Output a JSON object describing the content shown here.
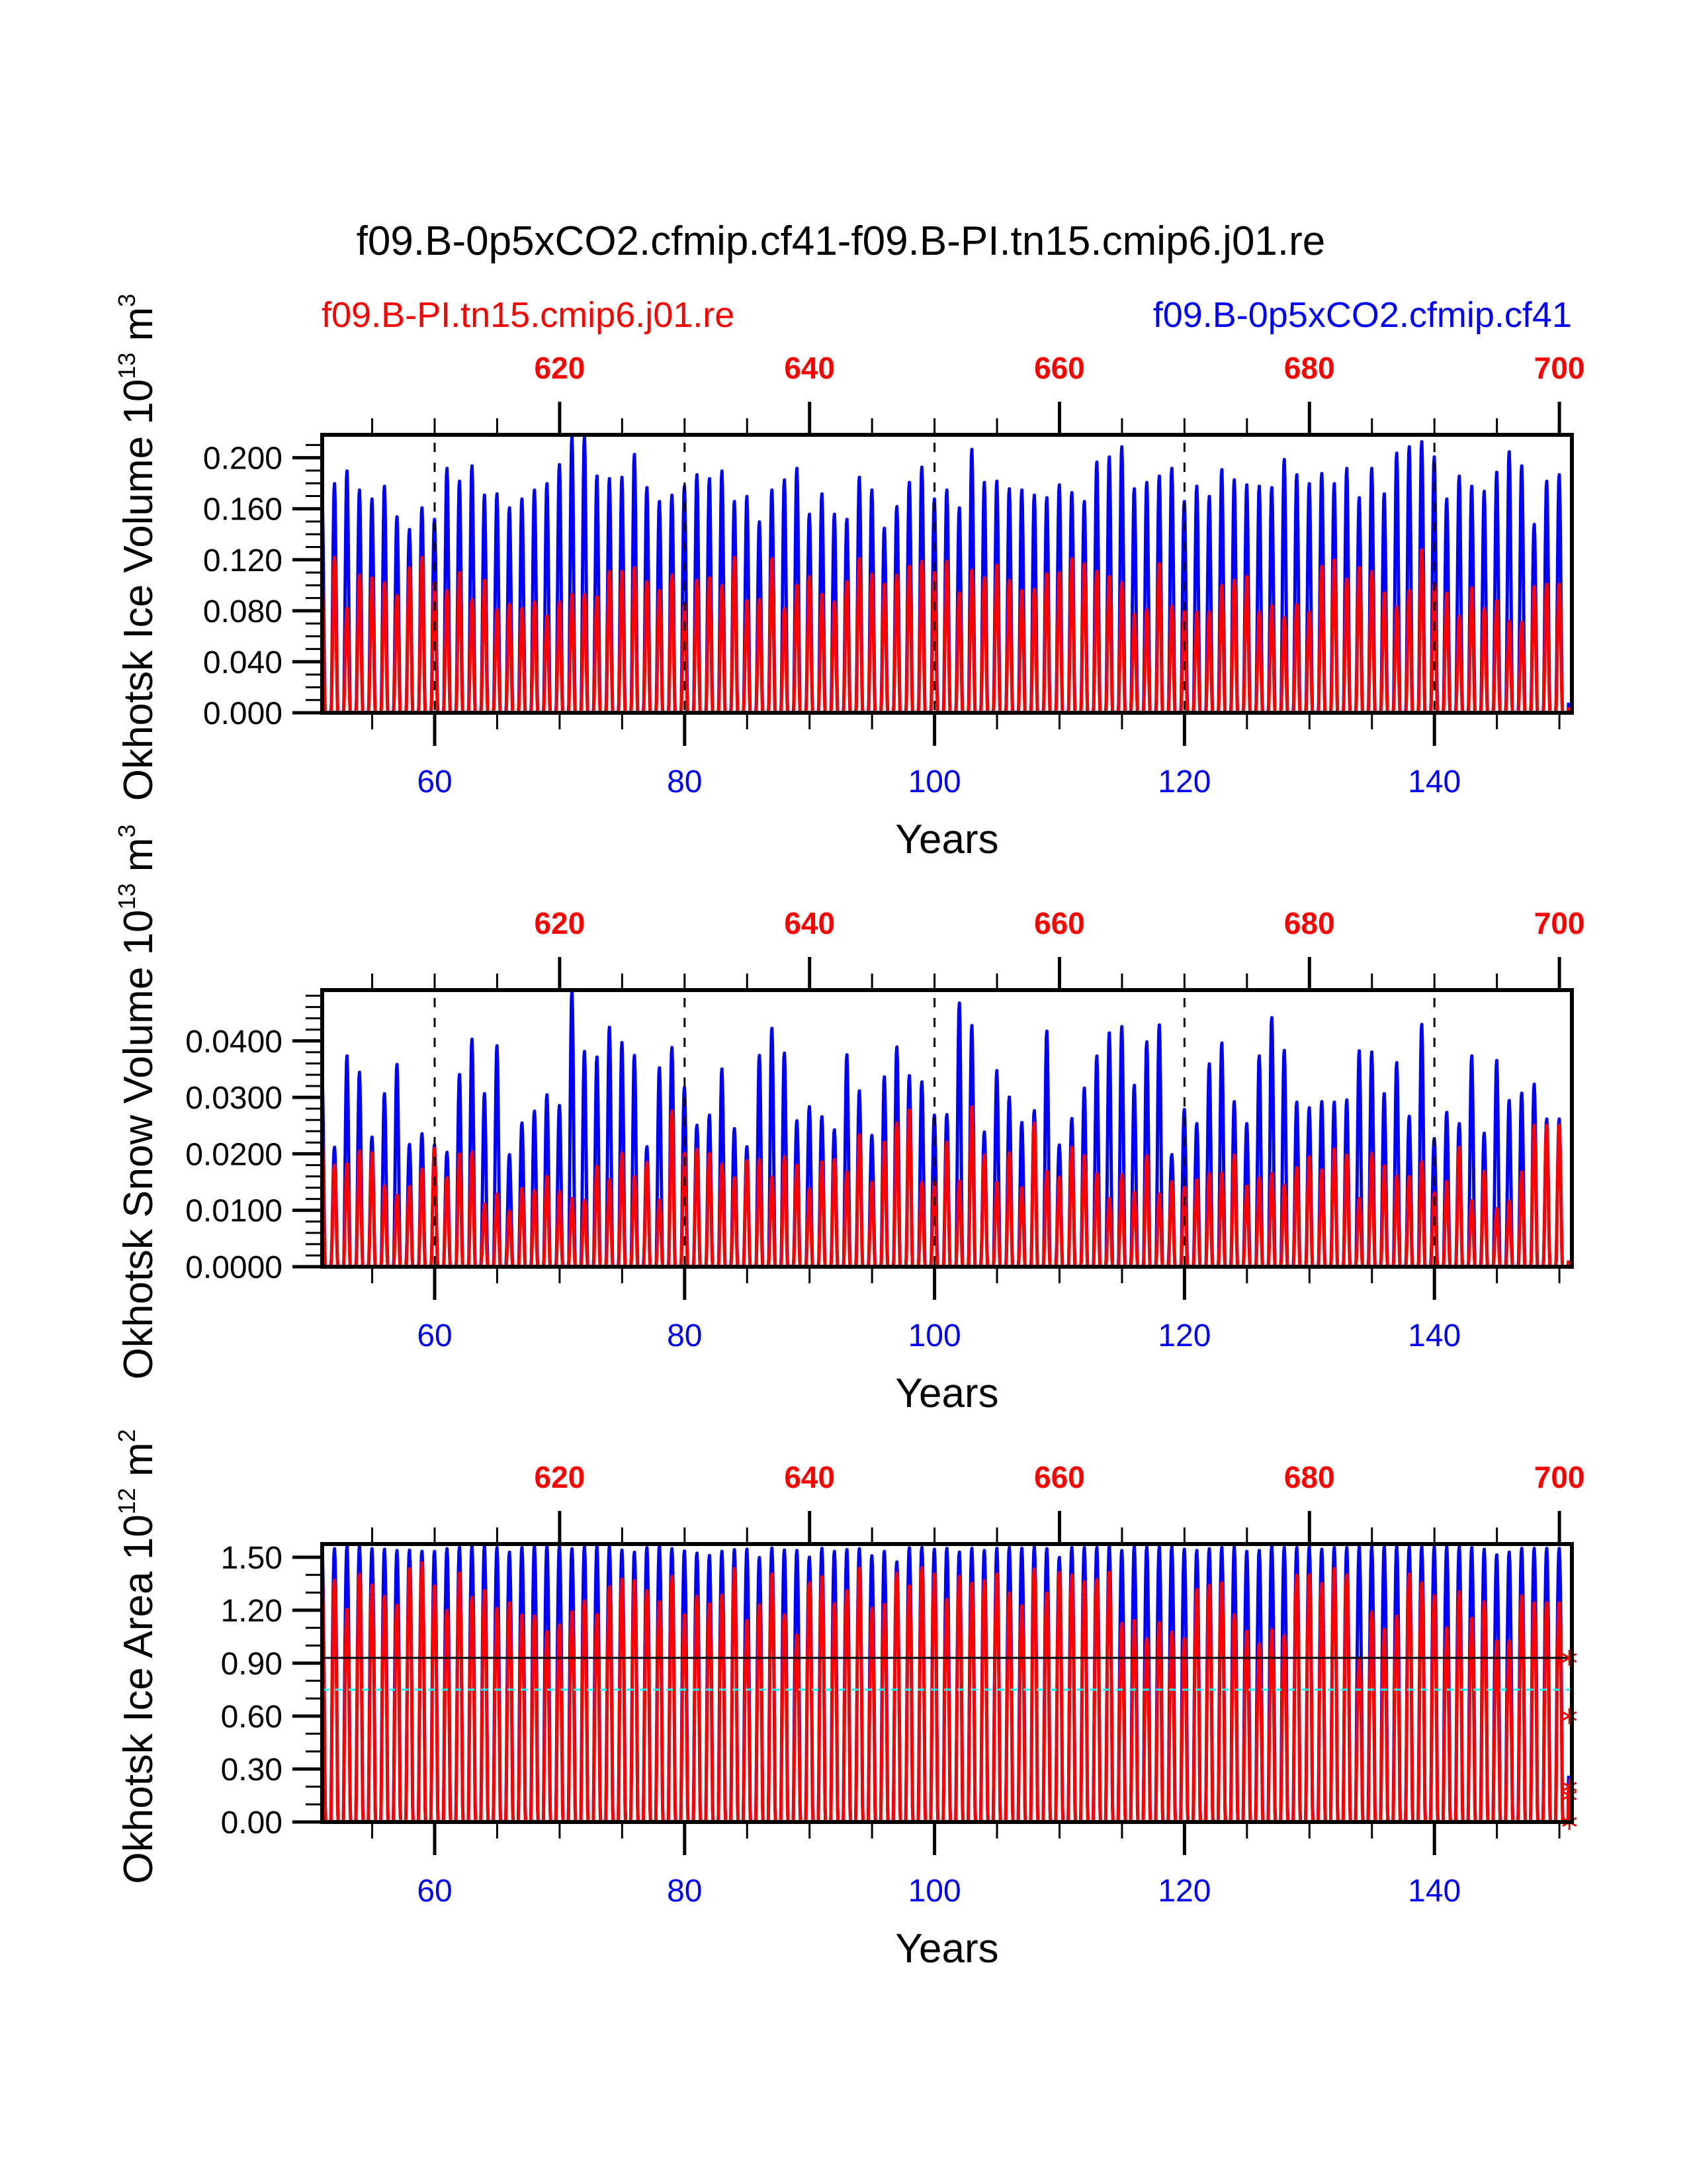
{
  "chart_data": {
    "type": "line",
    "title": "f09.B-0p5xCO2.cfmip.cf41-f09.B-PI.tn15.cmip6.j01.re",
    "legend": {
      "left": {
        "label": "f09.B-PI.tn15.cmip6.j01.re",
        "color": "#ff0000"
      },
      "right": {
        "label": "f09.B-0p5xCO2.cfmip.cf41",
        "color": "#0000ff"
      }
    },
    "x_bottom": {
      "label": "Years",
      "range": [
        51,
        151
      ],
      "ticks": [
        60,
        80,
        100,
        120,
        140
      ],
      "tick_labels": [
        "60",
        "80",
        "100",
        "120",
        "140"
      ],
      "minor_step": 5,
      "color": "#0000ff"
    },
    "x_top": {
      "range": [
        601,
        701
      ],
      "ticks": [
        620,
        640,
        660,
        680,
        700
      ],
      "tick_labels": [
        "620",
        "640",
        "660",
        "680",
        "700"
      ],
      "minor_step": 5,
      "color": "#ff0000"
    },
    "first_year": 51,
    "panels": [
      {
        "id": "ice-volume",
        "ylabel": "Okhotsk Ice Volume 10",
        "ylabel_exp": "13",
        "ylabel_unit": " m",
        "ylabel_unit_exp": "3",
        "ylim": [
          0,
          0.218
        ],
        "yticks": [
          0.0,
          0.04,
          0.08,
          0.12,
          0.16,
          0.2
        ],
        "ytick_labels": [
          "0.000",
          "0.040",
          "0.080",
          "0.120",
          "0.160",
          "0.200"
        ],
        "yminor_step": 0.01,
        "vlines_dashed_years": [
          60,
          80,
          100,
          120,
          140
        ],
        "hlines": [],
        "series": [
          {
            "name": "f09.B-0p5xCO2.cfmip.cf41",
            "color": "#0000ff",
            "annual_max": [
              0.17,
              0.18,
              0.19,
              0.175,
              0.168,
              0.178,
              0.154,
              0.144,
              0.161,
              0.152,
              0.192,
              0.182,
              0.194,
              0.171,
              0.172,
              0.161,
              0.168,
              0.175,
              0.18,
              0.195,
              0.217,
              0.217,
              0.186,
              0.184,
              0.185,
              0.203,
              0.177,
              0.166,
              0.171,
              0.178,
              0.187,
              0.184,
              0.19,
              0.166,
              0.17,
              0.15,
              0.175,
              0.183,
              0.192,
              0.156,
              0.172,
              0.156,
              0.152,
              0.185,
              0.175,
              0.145,
              0.162,
              0.181,
              0.193,
              0.168,
              0.175,
              0.161,
              0.207,
              0.181,
              0.182,
              0.176,
              0.175,
              0.171,
              0.169,
              0.179,
              0.173,
              0.166,
              0.197,
              0.201,
              0.209,
              0.176,
              0.181,
              0.186,
              0.192,
              0.166,
              0.178,
              0.17,
              0.191,
              0.183,
              0.179,
              0.178,
              0.177,
              0.199,
              0.187,
              0.18,
              0.188,
              0.18,
              0.192,
              0.169,
              0.192,
              0.172,
              0.204,
              0.209,
              0.213,
              0.201,
              0.168,
              0.186,
              0.178,
              0.174,
              0.189,
              0.205,
              0.194,
              0.148,
              0.182,
              0.187
            ]
          },
          {
            "name": "f09.B-PI.tn15.cmip6.j01.re",
            "color": "#ff0000",
            "annual_max": [
              0.105,
              0.122,
              0.082,
              0.108,
              0.106,
              0.102,
              0.092,
              0.114,
              0.122,
              0.102,
              0.096,
              0.11,
              0.089,
              0.104,
              0.081,
              0.085,
              0.082,
              0.087,
              0.076,
              0.087,
              0.093,
              0.093,
              0.091,
              0.111,
              0.111,
              0.114,
              0.103,
              0.096,
              0.108,
              0.085,
              0.104,
              0.106,
              0.1,
              0.122,
              0.088,
              0.089,
              0.121,
              0.082,
              0.1,
              0.107,
              0.093,
              0.087,
              0.103,
              0.121,
              0.109,
              0.101,
              0.108,
              0.115,
              0.119,
              0.11,
              0.119,
              0.094,
              0.112,
              0.106,
              0.116,
              0.104,
              0.096,
              0.097,
              0.109,
              0.11,
              0.121,
              0.117,
              0.111,
              0.107,
              0.102,
              0.077,
              0.081,
              0.117,
              0.084,
              0.08,
              0.079,
              0.079,
              0.1,
              0.104,
              0.107,
              0.079,
              0.084,
              0.075,
              0.085,
              0.079,
              0.115,
              0.12,
              0.105,
              0.114,
              0.111,
              0.094,
              0.083,
              0.096,
              0.128,
              0.101,
              0.094,
              0.076,
              0.098,
              0.082,
              0.088,
              0.072,
              0.071,
              0.099,
              0.101,
              0.101
            ]
          }
        ]
      },
      {
        "id": "snow-volume",
        "ylabel": "Okhotsk Snow Volume 10",
        "ylabel_exp": "13",
        "ylabel_unit": " m",
        "ylabel_unit_exp": "3",
        "ylim": [
          0,
          0.049
        ],
        "yticks": [
          0.0,
          0.01,
          0.02,
          0.03,
          0.04
        ],
        "ytick_labels": [
          "0.0000",
          "0.0100",
          "0.0200",
          "0.0300",
          "0.0400"
        ],
        "yminor_step": 0.002,
        "vlines_dashed_years": [
          60,
          80,
          100,
          120,
          140
        ],
        "hlines": [],
        "series": [
          {
            "name": "f09.B-0p5xCO2.cfmip.cf41",
            "color": "#0000ff",
            "annual_max": [
              0.0339,
              0.0212,
              0.0374,
              0.0345,
              0.023,
              0.0307,
              0.0359,
              0.0217,
              0.0236,
              0.0216,
              0.0203,
              0.0341,
              0.0404,
              0.0307,
              0.0392,
              0.0199,
              0.0255,
              0.0276,
              0.0305,
              0.0286,
              0.049,
              0.0382,
              0.0372,
              0.0425,
              0.0398,
              0.0375,
              0.0213,
              0.0353,
              0.0389,
              0.0318,
              0.0251,
              0.0269,
              0.0351,
              0.0245,
              0.0213,
              0.0375,
              0.0423,
              0.0379,
              0.0259,
              0.0284,
              0.0266,
              0.0243,
              0.0376,
              0.0312,
              0.0233,
              0.0337,
              0.039,
              0.0339,
              0.0328,
              0.0269,
              0.027,
              0.0468,
              0.0428,
              0.0239,
              0.0348,
              0.0301,
              0.0256,
              0.0277,
              0.0418,
              0.0216,
              0.0263,
              0.0317,
              0.0374,
              0.0415,
              0.0426,
              0.0322,
              0.0399,
              0.0429,
              0.0199,
              0.0279,
              0.0254,
              0.036,
              0.0397,
              0.0293,
              0.0254,
              0.0374,
              0.0442,
              0.0384,
              0.0292,
              0.0282,
              0.0293,
              0.0292,
              0.0296,
              0.0383,
              0.0381,
              0.0307,
              0.0362,
              0.0267,
              0.043,
              0.0227,
              0.0274,
              0.0254,
              0.0374,
              0.0237,
              0.0366,
              0.0295,
              0.0308,
              0.0324,
              0.0262,
              0.0262
            ]
          },
          {
            "name": "f09.B-PI.tn15.cmip6.j01.re",
            "color": "#ff0000",
            "annual_max": [
              0.0241,
              0.018,
              0.0182,
              0.0205,
              0.0202,
              0.0143,
              0.0127,
              0.0142,
              0.0173,
              0.021,
              0.0158,
              0.02,
              0.0203,
              0.0111,
              0.0129,
              0.0098,
              0.0139,
              0.0135,
              0.016,
              0.0133,
              0.0121,
              0.0118,
              0.0178,
              0.0155,
              0.0201,
              0.016,
              0.0185,
              0.0118,
              0.0276,
              0.0201,
              0.0208,
              0.0201,
              0.0182,
              0.0158,
              0.0188,
              0.019,
              0.0159,
              0.0195,
              0.018,
              0.0138,
              0.0186,
              0.019,
              0.0168,
              0.0234,
              0.015,
              0.0221,
              0.0255,
              0.0278,
              0.015,
              0.015,
              0.0221,
              0.0152,
              0.0284,
              0.0198,
              0.0149,
              0.0202,
              0.014,
              0.0255,
              0.0169,
              0.0159,
              0.0212,
              0.0197,
              0.0165,
              0.0121,
              0.0163,
              0.0132,
              0.0197,
              0.0129,
              0.0151,
              0.0141,
              0.0154,
              0.0165,
              0.0166,
              0.0198,
              0.0143,
              0.0158,
              0.0165,
              0.0145,
              0.0176,
              0.0195,
              0.0172,
              0.0209,
              0.0198,
              0.0121,
              0.0201,
              0.0179,
              0.0161,
              0.016,
              0.0186,
              0.0131,
              0.0151,
              0.0212,
              0.0117,
              0.0169,
              0.0103,
              0.0117,
              0.0168,
              0.0251,
              0.0251,
              0.0251
            ]
          }
        ]
      },
      {
        "id": "ice-area",
        "ylabel": "Okhotsk Ice Area 10",
        "ylabel_exp": "12",
        "ylabel_unit": " m",
        "ylabel_unit_exp": "2",
        "ylim": [
          0,
          1.575
        ],
        "yticks": [
          0.0,
          0.3,
          0.6,
          0.9,
          1.2,
          1.5
        ],
        "ytick_labels": [
          "0.00",
          "0.30",
          "0.60",
          "0.90",
          "1.20",
          "1.50"
        ],
        "yminor_step": 0.1,
        "vlines_dashed_years": [],
        "hlines": [
          {
            "value": 0.93,
            "color": "#000000",
            "style": "solid"
          },
          {
            "value": 0.75,
            "color": "#00ffff",
            "style": "dashed"
          }
        ],
        "markers": {
          "symbol": "asterisk",
          "color": "#ff0000",
          "x": 150.8,
          "values": [
            0.93,
            0.6,
            0.2,
            0.15,
            0.0
          ]
        },
        "series": [
          {
            "name": "f09.B-0p5xCO2.cfmip.cf41",
            "color": "#0000ff",
            "annual_max": [
              1.537,
              1.55,
              1.565,
              1.565,
              1.55,
              1.547,
              1.54,
              1.542,
              1.535,
              1.535,
              1.55,
              1.557,
              1.565,
              1.565,
              1.556,
              1.53,
              1.556,
              1.565,
              1.565,
              1.565,
              1.55,
              1.562,
              1.565,
              1.565,
              1.542,
              1.53,
              1.556,
              1.565,
              1.55,
              1.537,
              1.525,
              1.512,
              1.535,
              1.545,
              1.547,
              1.5,
              1.553,
              1.543,
              1.54,
              1.502,
              1.552,
              1.535,
              1.545,
              1.55,
              1.51,
              1.535,
              1.475,
              1.555,
              1.556,
              1.547,
              1.552,
              1.531,
              1.552,
              1.54,
              1.552,
              1.556,
              1.552,
              1.56,
              1.55,
              1.5,
              1.556,
              1.556,
              1.556,
              1.562,
              1.54,
              1.56,
              1.56,
              1.56,
              1.56,
              1.547,
              1.54,
              1.55,
              1.556,
              1.56,
              1.535,
              1.54,
              1.562,
              1.556,
              1.556,
              1.56,
              1.547,
              1.556,
              1.556,
              1.56,
              1.56,
              1.56,
              1.562,
              1.56,
              1.56,
              1.56,
              1.56,
              1.56,
              1.556,
              1.547,
              1.515,
              1.531,
              1.552,
              1.552,
              1.552,
              1.552
            ]
          },
          {
            "name": "f09.B-PI.tn15.cmip6.j01.re",
            "color": "#ff0000",
            "annual_max": [
              1.425,
              1.371,
              1.205,
              1.405,
              1.344,
              1.279,
              1.229,
              1.437,
              1.47,
              1.338,
              1.199,
              1.412,
              1.274,
              1.312,
              1.212,
              1.243,
              1.174,
              1.168,
              1.079,
              1.118,
              1.192,
              1.254,
              1.176,
              1.334,
              1.378,
              1.369,
              1.313,
              1.249,
              1.393,
              1.174,
              1.279,
              1.237,
              1.287,
              1.437,
              1.142,
              1.231,
              1.406,
              1.175,
              1.059,
              1.356,
              1.391,
              1.239,
              1.312,
              1.44,
              1.212,
              1.234,
              1.412,
              1.339,
              1.443,
              1.406,
              1.262,
              1.394,
              1.354,
              1.369,
              1.406,
              1.299,
              1.227,
              1.435,
              1.299,
              1.415,
              1.4,
              1.362,
              1.375,
              1.416,
              1.126,
              1.142,
              1.039,
              1.129,
              1.076,
              1.039,
              1.318,
              1.343,
              1.356,
              1.175,
              1.081,
              1.009,
              1.089,
              1.058,
              1.4,
              1.402,
              1.352,
              1.437,
              1.402,
              0.93,
              1.192,
              1.092,
              1.168,
              1.406,
              1.356,
              1.284,
              1.1,
              1.305,
              1.155,
              1.249,
              1.026,
              1.026,
              1.282,
              1.243,
              1.243,
              1.243
            ]
          }
        ]
      }
    ]
  }
}
